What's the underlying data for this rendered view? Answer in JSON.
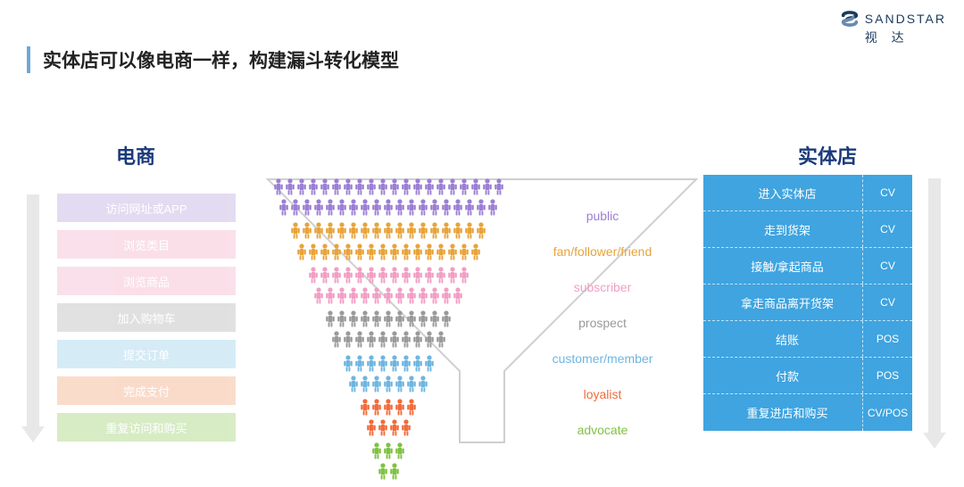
{
  "logo": {
    "text_en": "SANDSTAR",
    "text_cn": "视 达",
    "mark_color_top": "#1a3a5c",
    "mark_color_bottom": "#4a6a8c"
  },
  "title": {
    "text": "实体店可以像电商一样，构建漏斗转化模型",
    "bar_color": "#6fa8d8",
    "text_color": "#222222"
  },
  "columns": {
    "left_header": "电商",
    "right_header": "实体店",
    "left_header_color": "#1a3a7a",
    "right_header_color": "#1a3a7a"
  },
  "arrow": {
    "color_left": "#e8e8e8",
    "color_right": "#e8e8e8",
    "shaft_height": 260,
    "head_height": 18
  },
  "left_bars": [
    {
      "label": "访问网址或APP",
      "color": "#b29bd8"
    },
    {
      "label": "浏览类目",
      "color": "#f2a6c2"
    },
    {
      "label": "浏览商品",
      "color": "#f2a6c2"
    },
    {
      "label": "加入购物车",
      "color": "#a8a8a8"
    },
    {
      "label": "提交订单",
      "color": "#88c8e8"
    },
    {
      "label": "完成支付",
      "color": "#f29b6b"
    },
    {
      "label": "重复访问和购买",
      "color": "#8fc95c"
    }
  ],
  "right_box": {
    "bg": "#3fa4e0",
    "rows": [
      {
        "label": "进入实体店",
        "tag": "CV"
      },
      {
        "label": "走到货架",
        "tag": "CV"
      },
      {
        "label": "接触/拿起商品",
        "tag": "CV"
      },
      {
        "label": "拿走商品离开货架",
        "tag": "CV"
      },
      {
        "label": "结账",
        "tag": "POS"
      },
      {
        "label": "付款",
        "tag": "POS"
      },
      {
        "label": "重复进店和购买",
        "tag": "CV/POS"
      }
    ]
  },
  "funnel": {
    "outline_color": "#cfcfcf",
    "person_size": 12,
    "rows": [
      {
        "count": 20,
        "color": "#9b7fd4",
        "label": "public",
        "label_color": "#9b7fd4"
      },
      {
        "count": 17,
        "color": "#e8a33a",
        "label": "fan/follower/friend",
        "label_color": "#e8a33a"
      },
      {
        "count": 14,
        "color": "#f29ec4",
        "label": "subscriber",
        "label_color": "#f29ec4"
      },
      {
        "count": 11,
        "color": "#9a9a9a",
        "label": "prospect",
        "label_color": "#9a9a9a"
      },
      {
        "count": 8,
        "color": "#6fb5e0",
        "label": "customer/member",
        "label_color": "#6fb5e0"
      },
      {
        "count": 5,
        "color": "#f26b3a",
        "label": "loyalist",
        "label_color": "#f26b3a"
      },
      {
        "count": 3,
        "color": "#7fc241",
        "label": "advocate",
        "label_color": "#7fc241"
      }
    ]
  }
}
